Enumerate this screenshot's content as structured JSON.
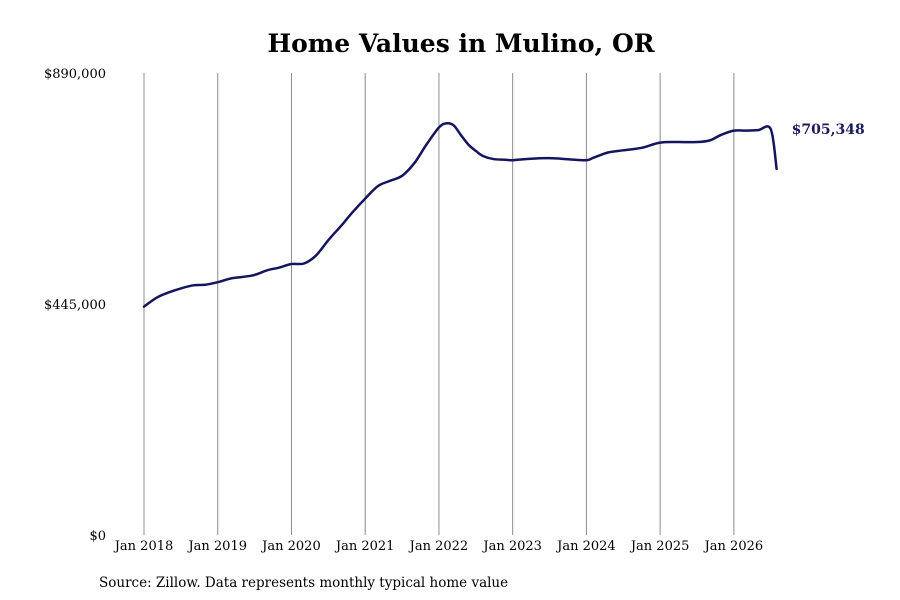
{
  "chart_data": {
    "type": "line",
    "title": "Home Values in Mulino, OR",
    "ylabel": "",
    "xlabel": "",
    "ylim": [
      0,
      890000
    ],
    "xlim": [
      2018.0,
      2026.58
    ],
    "y_ticks": [
      {
        "value": 0,
        "label": "$0"
      },
      {
        "value": 445000,
        "label": "$445,000"
      },
      {
        "value": 890000,
        "label": "$890,000"
      }
    ],
    "x_ticks": [
      {
        "value": 2018,
        "label": "Jan 2018"
      },
      {
        "value": 2019,
        "label": "Jan 2019"
      },
      {
        "value": 2020,
        "label": "Jan 2020"
      },
      {
        "value": 2021,
        "label": "Jan 2021"
      },
      {
        "value": 2022,
        "label": "Jan 2022"
      },
      {
        "value": 2023,
        "label": "Jan 2023"
      },
      {
        "value": 2024,
        "label": "Jan 2024"
      },
      {
        "value": 2025,
        "label": "Jan 2025"
      },
      {
        "value": 2026,
        "label": "Jan 2026"
      }
    ],
    "grid": "vertical",
    "legend": "none",
    "line_color": "#15155e",
    "end_label": "$705,348",
    "series": [
      {
        "x": [
          2018.0,
          2018.17,
          2018.33,
          2018.5,
          2018.67,
          2018.83,
          2019.0,
          2019.17,
          2019.33,
          2019.5,
          2019.67,
          2019.83,
          2020.0,
          2020.17,
          2020.33,
          2020.5,
          2020.67,
          2020.83,
          2021.0,
          2021.17,
          2021.33,
          2021.5,
          2021.67,
          2021.83,
          2022.0,
          2022.1,
          2022.2,
          2022.3,
          2022.4,
          2022.5,
          2022.6,
          2022.75,
          2022.9,
          2023.0,
          2023.25,
          2023.5,
          2023.75,
          2024.0,
          2024.1,
          2024.3,
          2024.5,
          2024.75,
          2025.0,
          2025.25,
          2025.5,
          2025.67,
          2025.83,
          2026.0,
          2026.17,
          2026.33,
          2026.5,
          2026.58
        ],
        "y": [
          440000,
          457000,
          467000,
          475000,
          481000,
          482000,
          487000,
          494000,
          497000,
          501000,
          510000,
          515000,
          522000,
          523000,
          538000,
          568000,
          595000,
          622000,
          648000,
          672000,
          682000,
          692000,
          717000,
          752000,
          785000,
          793000,
          789000,
          770000,
          752000,
          740000,
          730000,
          724000,
          723000,
          722000,
          725000,
          726000,
          724000,
          722000,
          727000,
          737000,
          741000,
          746000,
          756000,
          757000,
          757000,
          760000,
          771000,
          779000,
          779000,
          780000,
          782000,
          705348
        ]
      }
    ]
  },
  "source_note": "Source: Zillow. Data represents monthly typical home value"
}
